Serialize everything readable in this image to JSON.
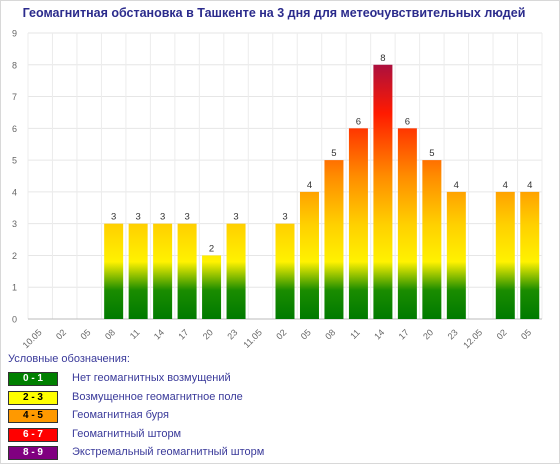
{
  "chart_data": {
    "type": "bar",
    "title": "Геомагнитная обстановка в Ташкенте на 3 дня для метеочувствительных людей",
    "ylim": [
      0,
      9
    ],
    "yticks": [
      "0",
      "1",
      "2",
      "3",
      "4",
      "5",
      "6",
      "7",
      "8",
      "9"
    ],
    "categories": [
      "10.05",
      "02",
      "05",
      "08",
      "11",
      "14",
      "17",
      "20",
      "23",
      "11.05",
      "02",
      "05",
      "08",
      "11",
      "14",
      "17",
      "20",
      "23",
      "12.05",
      "02",
      "05"
    ],
    "values": [
      null,
      null,
      null,
      3,
      3,
      3,
      3,
      2,
      3,
      null,
      3,
      4,
      5,
      6,
      8,
      6,
      5,
      4,
      null,
      4,
      4
    ],
    "grid": true,
    "gradient": [
      "#008000",
      "#ffff00",
      "#ff8c00",
      "#ff0000",
      "#800080"
    ]
  },
  "legend": {
    "title": "Условные обозначения:",
    "items": [
      {
        "range": "0 - 1",
        "label": "Нет геомагнитных возмущений",
        "color": "#008000",
        "text_color": "#ffffff"
      },
      {
        "range": "2 - 3",
        "label": "Возмущенное геомагнитное поле",
        "color": "#ffff00",
        "text_color": "#000000"
      },
      {
        "range": "4 - 5",
        "label": "Геомагнитная буря",
        "color": "#ff9900",
        "text_color": "#000000"
      },
      {
        "range": "6 - 7",
        "label": "Геомагнитный шторм",
        "color": "#ff0000",
        "text_color": "#ffffff"
      },
      {
        "range": "8 - 9",
        "label": "Экстремальный геомагнитный шторм",
        "color": "#800080",
        "text_color": "#ffffff"
      }
    ]
  }
}
